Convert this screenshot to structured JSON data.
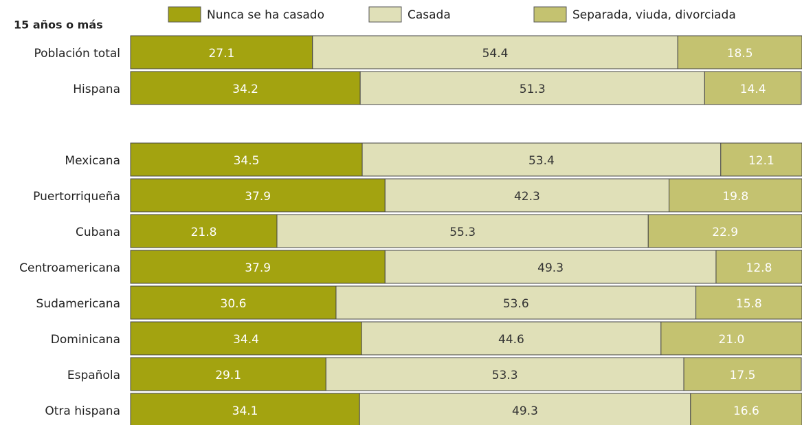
{
  "chart_data": {
    "type": "stacked-bar-horizontal",
    "subtitle": "15 años o más",
    "categories": [
      "Población total",
      "Hispana",
      null,
      "Mexicana",
      "Puertorriqueña",
      "Cubana",
      "Centroamericana",
      "Sudamericana",
      "Dominicana",
      "Española",
      "Otra hispana"
    ],
    "series": [
      {
        "name": "Nunca se ha casado",
        "color": "#a3a310",
        "label_color": "#ffffff",
        "values": [
          27.1,
          34.2,
          null,
          34.5,
          37.9,
          21.8,
          37.9,
          30.6,
          34.4,
          29.1,
          34.1
        ],
        "value_labels": [
          "27.1",
          "34.2",
          null,
          "34.5",
          "37.9",
          "21.8",
          "37.9",
          "30.6",
          "34.4",
          "29.1",
          "34.1"
        ]
      },
      {
        "name": "Casada",
        "color": "#e0e0b8",
        "label_color": "#333333",
        "values": [
          54.4,
          51.3,
          null,
          53.4,
          42.3,
          55.3,
          49.3,
          53.6,
          44.6,
          53.3,
          49.3
        ],
        "value_labels": [
          "54.4",
          "51.3",
          null,
          "53.4",
          "42.3",
          "55.3",
          "49.3",
          "53.6",
          "44.6",
          "53.3",
          "49.3"
        ]
      },
      {
        "name": "Separada, viuda, divorciada",
        "color": "#c4c270",
        "label_color": "#ffffff",
        "values": [
          18.5,
          14.4,
          null,
          12.1,
          19.8,
          22.9,
          12.8,
          15.8,
          21.0,
          17.5,
          16.6
        ],
        "value_labels": [
          "18.5",
          "14.4",
          null,
          "12.1",
          "19.8",
          "22.9",
          "12.8",
          "15.8",
          "21.0",
          "17.5",
          "16.6"
        ]
      }
    ],
    "xlim": [
      0,
      100
    ]
  }
}
